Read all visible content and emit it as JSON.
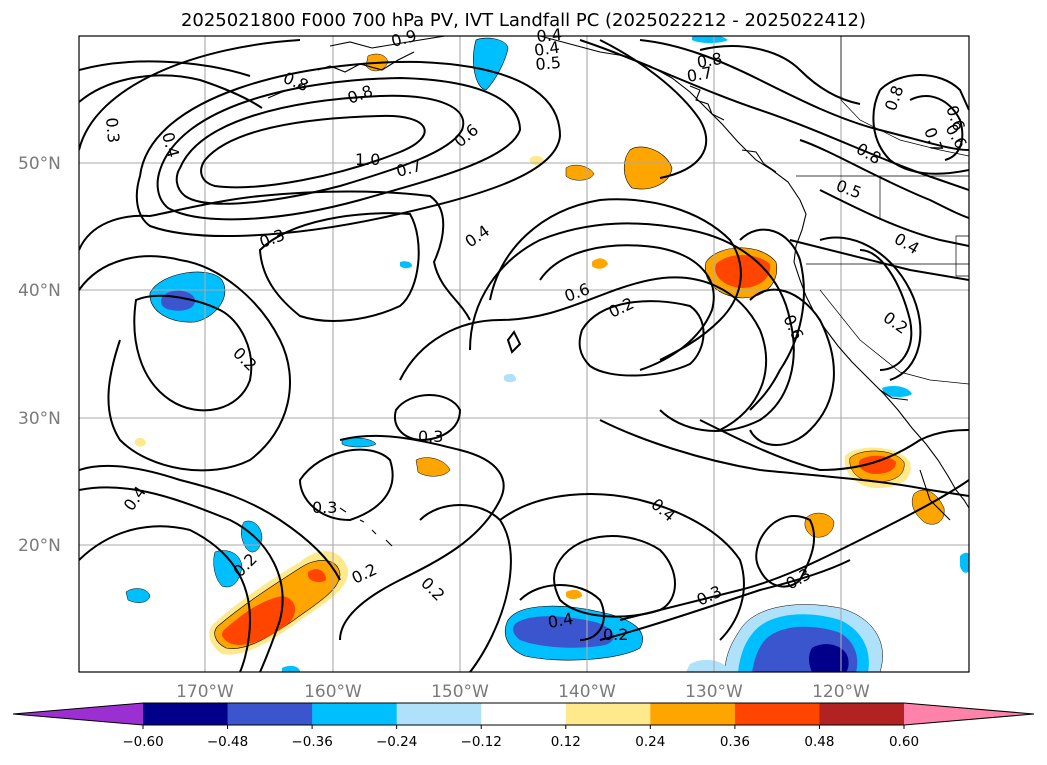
{
  "chart_data": {
    "type": "map-contour",
    "title": "2025021800 F000 700 hPa PV, IVT Landfall PC (2025022212 - 2025022412)",
    "lat_ticks": [
      "50°N",
      "40°N",
      "30°N",
      "20°N"
    ],
    "lon_ticks": [
      "170°W",
      "160°W",
      "150°W",
      "140°W",
      "130°W",
      "120°W"
    ],
    "grid": true,
    "colorbar": {
      "orientation": "horizontal",
      "extend": "both",
      "levels": [
        -0.72,
        -0.6,
        -0.48,
        -0.36,
        -0.24,
        -0.12,
        0.12,
        0.24,
        0.36,
        0.48,
        0.6,
        0.72
      ],
      "tick_labels": [
        "−0.60",
        "−0.48",
        "−0.36",
        "−0.24",
        "−0.12",
        "0.12",
        "0.24",
        "0.36",
        "0.48",
        "0.60"
      ],
      "colors": [
        "#9b2fd1",
        "#00008b",
        "#3a55cd",
        "#00bfff",
        "#afe1fa",
        "#ffffff",
        "#fee98c",
        "#ffa500",
        "#ff4500",
        "#b22222",
        "#ff82ab"
      ]
    },
    "contour_labels": [
      "0.8",
      "0.9",
      "0.8",
      "0.4",
      "0.3",
      "0.4",
      "0.8",
      "1.0",
      "0.7",
      "0.6",
      "0.5",
      "0.4",
      "0.7",
      "0.8",
      "0.8",
      "0.6",
      "0.7",
      "0.6",
      "0.8",
      "0.5",
      "0.4",
      "0.3",
      "0.4",
      "0.6",
      "0.2",
      "0.6",
      "0.2",
      "0.2",
      "0.3",
      "0.3",
      "0.4",
      "0.2",
      "0.2",
      "0.2",
      "0.4",
      "0.4",
      "0.3",
      "0.3",
      "0.2"
    ]
  }
}
